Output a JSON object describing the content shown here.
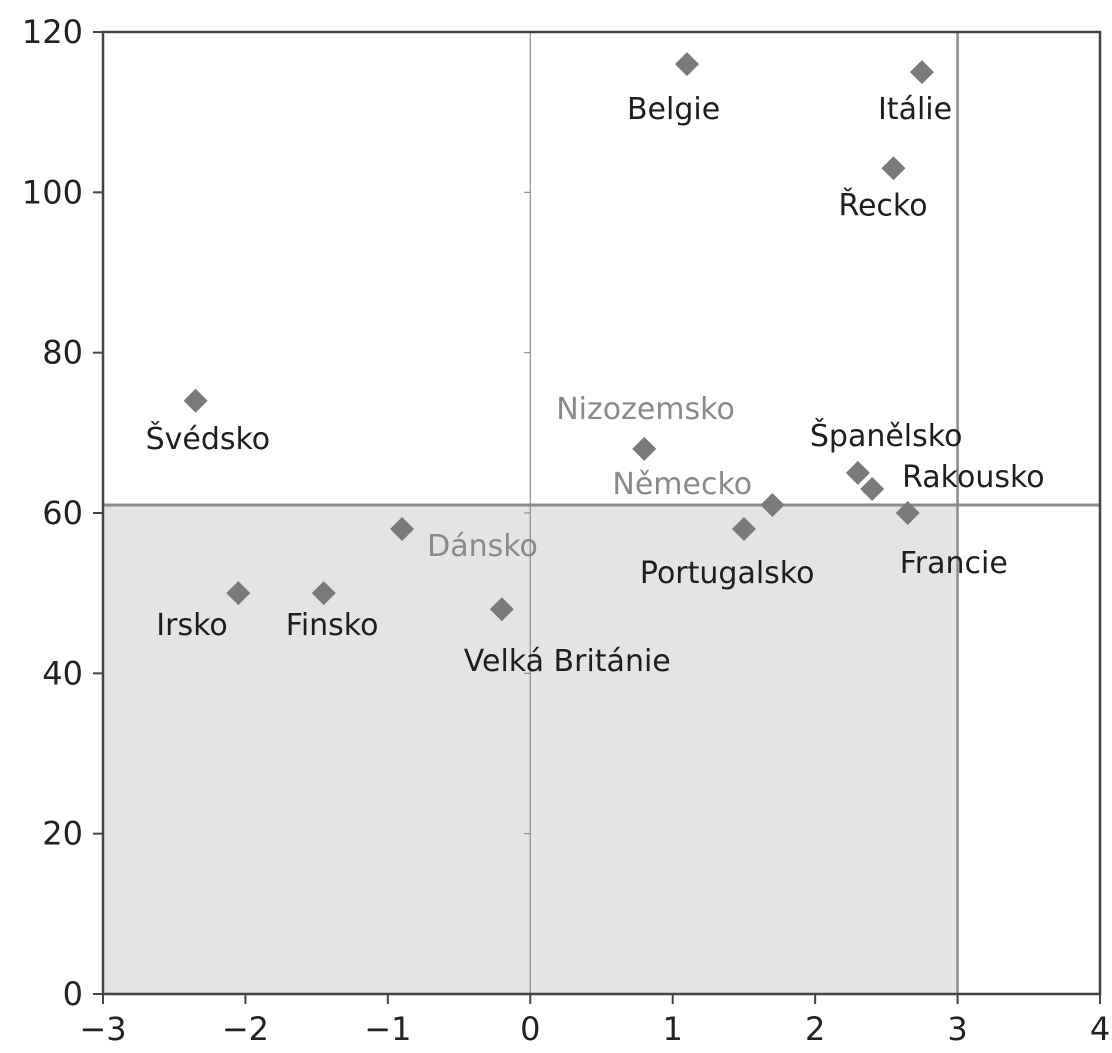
{
  "chart_data": {
    "type": "scatter",
    "title": "",
    "xlabel": "",
    "ylabel": "",
    "xlim": [
      -3,
      4
    ],
    "ylim": [
      0,
      120
    ],
    "x_ticks": [
      -3,
      -2,
      -1,
      0,
      1,
      2,
      3,
      4
    ],
    "x_tick_labels": [
      "−3",
      "−2",
      "−1",
      "0",
      "1",
      "2",
      "3",
      "4"
    ],
    "y_ticks": [
      0,
      20,
      40,
      60,
      80,
      100,
      120
    ],
    "y_tick_labels": [
      "0",
      "20",
      "40",
      "60",
      "80",
      "100",
      "120"
    ],
    "reference_lines": {
      "x": [
        0,
        3
      ],
      "y": [
        61
      ]
    },
    "shaded_region": {
      "x": [
        -3,
        3
      ],
      "y": [
        0,
        61
      ]
    },
    "colors": {
      "marker": "#7a7a7a",
      "shade": "#e4e4e4",
      "axis": "#444444",
      "ref_line": "#8c8c8c"
    },
    "grid": false,
    "points": [
      {
        "label": "Belgie",
        "x": 1.1,
        "y": 116,
        "faded": false
      },
      {
        "label": "Itálie",
        "x": 2.75,
        "y": 115,
        "faded": false
      },
      {
        "label": "Řecko",
        "x": 2.55,
        "y": 103,
        "faded": false
      },
      {
        "label": "Švédsko",
        "x": -2.35,
        "y": 74,
        "faded": false
      },
      {
        "label": "Nizozemsko",
        "x": 0.8,
        "y": 68,
        "faded": true
      },
      {
        "label": "Španělsko",
        "x": 2.3,
        "y": 65,
        "faded": false
      },
      {
        "label": "Rakousko",
        "x": 2.4,
        "y": 63,
        "faded": false
      },
      {
        "label": "Německo",
        "x": 1.7,
        "y": 61,
        "faded": true
      },
      {
        "label": "Francie",
        "x": 2.65,
        "y": 60,
        "faded": false
      },
      {
        "label": "Dánsko",
        "x": -0.9,
        "y": 58,
        "faded": true
      },
      {
        "label": "Portugalsko",
        "x": 1.5,
        "y": 58,
        "faded": false
      },
      {
        "label": "Irsko",
        "x": -2.05,
        "y": 50,
        "faded": false
      },
      {
        "label": "Finsko",
        "x": -1.45,
        "y": 50,
        "faded": false
      },
      {
        "label": "Velká Británie",
        "x": -0.2,
        "y": 48,
        "faded": false
      }
    ]
  }
}
